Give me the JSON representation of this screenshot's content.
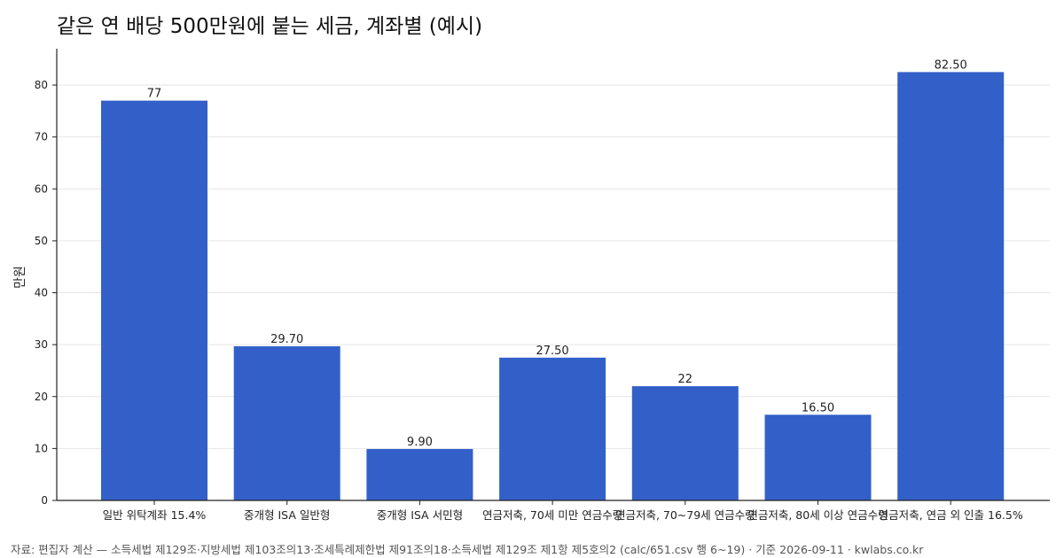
{
  "chart_data": {
    "type": "bar",
    "title": "같은 연 배당 500만원에 붙는 세금, 계좌별 (예시)",
    "xlabel": "",
    "ylabel": "만원",
    "ylim": [
      0,
      87
    ],
    "yticks": [
      0,
      10,
      20,
      30,
      40,
      50,
      60,
      70,
      80
    ],
    "grid": "horizontal",
    "bar_color": "#3360c8",
    "categories": [
      "일반 위탁계좌 15.4%",
      "중개형 ISA 일반형",
      "중개형 ISA 서민형",
      "연금저축, 70세 미만 연금수령",
      "연금저축, 70~79세 연금수령",
      "연금저축, 80세 이상 연금수령",
      "연금저축, 연금 외 인출 16.5%"
    ],
    "values": [
      77,
      29.7,
      9.9,
      27.5,
      22,
      16.5,
      82.5
    ],
    "data_labels": [
      "77",
      "29.70",
      "9.90",
      "27.50",
      "22",
      "16.50",
      "82.50"
    ]
  },
  "footer": "자료: 편집자 계산 — 소득세법 제129조·지방세법 제103조의13·조세특례제한법 제91조의18·소득세법 제129조 제1항 제5호의2 (calc/651.csv 행 6~19) · 기준 2026-09-11 · kwlabs.co.kr"
}
